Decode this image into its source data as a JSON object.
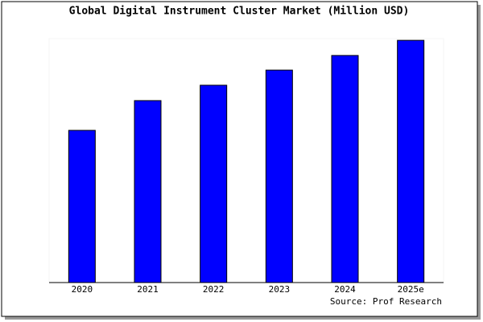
{
  "chart_data": {
    "type": "bar",
    "title": "Global Digital Instrument Cluster Market (Million USD)",
    "categories": [
      "2020",
      "2021",
      "2022",
      "2023",
      "2024",
      "2025e"
    ],
    "values": [
      62.4,
      74.6,
      80.9,
      87.1,
      93.1,
      99.3
    ],
    "color": "#0000ff",
    "ylim": [
      0,
      100
    ],
    "source": "Source: Prof Research"
  }
}
